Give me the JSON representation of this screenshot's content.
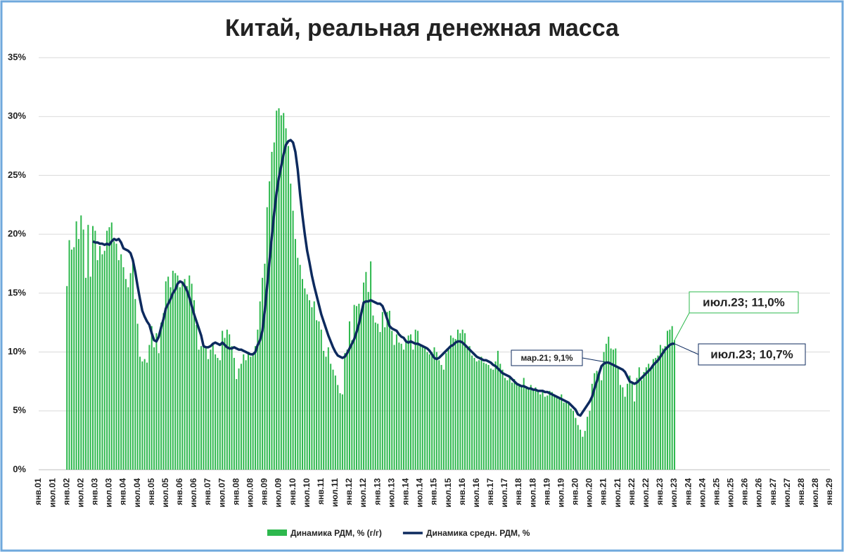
{
  "chart_data": {
    "type": "bar-line",
    "title": "Китай, реальная денежная масса",
    "categories": [
      "янв.01",
      null,
      null,
      null,
      null,
      null,
      "июл.01",
      null,
      null,
      null,
      null,
      null,
      "янв.02",
      null,
      null,
      null,
      null,
      null,
      "июл.02",
      null,
      null,
      null,
      null,
      null,
      "янв.03",
      null,
      null,
      null,
      null,
      null,
      "июл.03",
      null,
      null,
      null,
      null,
      null,
      "янв.04",
      null,
      null,
      null,
      null,
      null,
      "июл.04",
      null,
      null,
      null,
      null,
      null,
      "янв.05",
      null,
      null,
      null,
      null,
      null,
      "июл.05",
      null,
      null,
      null,
      null,
      null,
      "янв.06",
      null,
      null,
      null,
      null,
      null,
      "июл.06",
      null,
      null,
      null,
      null,
      null,
      "янв.07",
      null,
      null,
      null,
      null,
      null,
      "июл.07",
      null,
      null,
      null,
      null,
      null,
      "янв.08",
      null,
      null,
      null,
      null,
      null,
      "июл.08",
      null,
      null,
      null,
      null,
      null,
      "янв.09",
      null,
      null,
      null,
      null,
      null,
      "июл.09",
      null,
      null,
      null,
      null,
      null,
      "янв.10",
      null,
      null,
      null,
      null,
      null,
      "июл.10",
      null,
      null,
      null,
      null,
      null,
      "янв.11",
      null,
      null,
      null,
      null,
      null,
      "июл.11",
      null,
      null,
      null,
      null,
      null,
      "янв.12",
      null,
      null,
      null,
      null,
      null,
      "июл.12",
      null,
      null,
      null,
      null,
      null,
      "янв.13",
      null,
      null,
      null,
      null,
      null,
      "июл.13",
      null,
      null,
      null,
      null,
      null,
      "янв.14",
      null,
      null,
      null,
      null,
      null,
      "июл.14",
      null,
      null,
      null,
      null,
      null,
      "янв.15",
      null,
      null,
      null,
      null,
      null,
      "июл.15",
      null,
      null,
      null,
      null,
      null,
      "янв.16",
      null,
      null,
      null,
      null,
      null,
      "июл.16",
      null,
      null,
      null,
      null,
      null,
      "янв.17",
      null,
      null,
      null,
      null,
      null,
      "июл.17",
      null,
      null,
      null,
      null,
      null,
      "янв.18",
      null,
      null,
      null,
      null,
      null,
      "июл.18",
      null,
      null,
      null,
      null,
      null,
      "янв.19",
      null,
      null,
      null,
      null,
      null,
      "июл.19",
      null,
      null,
      null,
      null,
      null,
      "янв.20",
      null,
      null,
      null,
      null,
      null,
      "июл.20",
      null,
      null,
      null,
      null,
      null,
      "янв.21",
      null,
      null,
      null,
      null,
      null,
      "июл.21",
      null,
      null,
      null,
      null,
      null,
      "янв.22",
      null,
      null,
      null,
      null,
      null,
      "июл.22",
      null,
      null,
      null,
      null,
      null,
      "янв.23",
      null,
      null,
      null,
      null,
      null,
      "июл.23",
      null,
      null,
      null,
      null,
      null,
      "янв.24",
      null,
      null,
      null,
      null,
      null,
      "июл.24",
      null,
      null,
      null,
      null,
      null,
      "янв.25",
      null,
      null,
      null,
      null,
      null,
      "июл.25",
      null,
      null,
      null,
      null,
      null,
      "янв.26",
      null,
      null,
      null,
      null,
      null,
      "июл.26",
      null,
      null,
      null,
      null,
      null,
      "янв.27",
      null,
      null,
      null,
      null,
      null,
      "июл.27",
      null,
      null,
      null,
      null,
      null,
      "янв.28",
      null,
      null,
      null,
      null,
      null,
      "июл.28",
      null,
      null,
      null,
      null,
      null,
      "янв.29"
    ],
    "series": [
      {
        "name": "Динамика РДМ, % (г/г)",
        "type": "bar",
        "color": "#2db84d",
        "values": [
          null,
          null,
          null,
          null,
          null,
          null,
          null,
          null,
          null,
          null,
          null,
          null,
          15.6,
          19.5,
          18.7,
          18.9,
          21.1,
          19.6,
          21.6,
          20.4,
          16.3,
          20.8,
          16.4,
          20.7,
          20.3,
          17.8,
          19.0,
          18.3,
          18.6,
          20.3,
          20.6,
          21.0,
          19.4,
          19.2,
          17.8,
          18.3,
          17.2,
          16.2,
          15.5,
          16.7,
          17.6,
          14.5,
          12.4,
          9.6,
          9.2,
          9.4,
          9.1,
          10.6,
          12.2,
          10.4,
          11.6,
          9.9,
          12.5,
          13.3,
          16.0,
          16.4,
          15.5,
          16.9,
          16.7,
          16.5,
          15.5,
          16.0,
          16.2,
          15.6,
          16.5,
          15.8,
          14.4,
          12.3,
          10.2,
          10.5,
          10.7,
          10.3,
          9.4,
          10.2,
          10.7,
          9.8,
          9.5,
          9.3,
          11.8,
          11.2,
          11.9,
          11.5,
          10.5,
          9.5,
          7.7,
          8.6,
          9.0,
          9.8,
          9.3,
          10.0,
          9.6,
          9.9,
          10.5,
          11.9,
          14.3,
          16.3,
          17.5,
          22.3,
          24.5,
          27.0,
          27.8,
          30.5,
          30.7,
          30.1,
          30.3,
          29.0,
          27.5,
          24.3,
          22.0,
          19.6,
          18.0,
          17.4,
          16.2,
          15.4,
          14.9,
          14.4,
          13.8,
          14.3,
          12.7,
          12.6,
          11.9,
          10.1,
          9.6,
          10.4,
          9.0,
          8.5,
          8.0,
          7.2,
          6.5,
          6.4,
          9.9,
          10.2,
          12.6,
          11.0,
          14.0,
          13.9,
          14.1,
          13.6,
          15.9,
          16.8,
          15.1,
          17.7,
          13.1,
          12.5,
          12.4,
          11.7,
          13.4,
          12.1,
          13.4,
          13.5,
          11.8,
          10.6,
          11.5,
          10.8,
          10.7,
          10.2,
          10.9,
          11.4,
          11.5,
          10.2,
          11.9,
          11.8,
          10.7,
          10.6,
          10.4,
          10.0,
          9.8,
          10.0,
          10.4,
          10.0,
          9.3,
          8.9,
          8.5,
          9.9,
          10.3,
          11.4,
          11.2,
          11.1,
          11.9,
          11.6,
          11.9,
          11.6,
          10.3,
          10.5,
          9.7,
          9.5,
          9.2,
          9.3,
          9.6,
          9.1,
          9.0,
          8.9,
          8.6,
          8.5,
          9.2,
          10.1,
          9.0,
          8.5,
          7.8,
          7.6,
          7.9,
          7.4,
          7.7,
          7.4,
          7.2,
          7.1,
          7.8,
          7.1,
          6.9,
          7.2,
          6.9,
          7.0,
          6.6,
          6.4,
          6.6,
          6.2,
          6.3,
          6.7,
          6.6,
          6.4,
          6.2,
          6.0,
          6.4,
          5.7,
          5.7,
          5.6,
          5.2,
          5.0,
          4.4,
          3.8,
          3.4,
          2.8,
          3.3,
          4.5,
          5.0,
          7.3,
          8.2,
          8.4,
          8.3,
          7.6,
          10.0,
          10.7,
          11.3,
          10.3,
          10.2,
          10.3,
          8.6,
          7.2,
          7.0,
          6.2,
          7.3,
          8.0,
          7.4,
          5.8,
          7.8,
          8.7,
          7.6,
          8.3,
          8.7,
          9.0,
          8.5,
          9.4,
          9.5,
          9.7,
          10.6,
          10.3,
          10.5,
          11.8,
          11.9,
          12.2,
          11.0,
          null,
          null,
          null,
          null,
          null,
          null,
          null,
          null,
          null,
          null,
          null,
          null,
          null,
          null,
          null,
          null,
          null,
          null,
          null,
          null,
          null,
          null,
          null,
          null,
          null,
          null,
          null,
          null,
          null,
          null,
          null,
          null,
          null,
          null,
          null,
          null,
          null,
          null,
          null,
          null,
          null,
          null,
          null,
          null,
          null,
          null,
          null,
          null,
          null,
          null,
          null,
          null,
          null,
          null,
          null,
          null,
          null,
          null,
          null,
          null,
          null,
          null,
          null,
          null,
          null,
          null
        ]
      },
      {
        "name": "Динамика средн. РДМ, %",
        "type": "line",
        "color": "#0d2a5e",
        "values": [
          null,
          null,
          null,
          null,
          null,
          null,
          null,
          null,
          null,
          null,
          null,
          null,
          null,
          null,
          null,
          null,
          null,
          null,
          null,
          null,
          null,
          null,
          null,
          19.4,
          19.3,
          19.3,
          19.2,
          19.2,
          19.1,
          19.2,
          19.1,
          19.4,
          19.6,
          19.5,
          19.6,
          19.3,
          18.8,
          18.7,
          18.6,
          18.4,
          17.8,
          16.8,
          15.6,
          14.5,
          13.5,
          13.0,
          12.6,
          12.3,
          11.6,
          11.0,
          10.9,
          11.3,
          12.1,
          12.8,
          13.7,
          14.1,
          14.5,
          15.0,
          15.3,
          15.8,
          16.0,
          15.9,
          15.6,
          15.2,
          14.6,
          13.9,
          13.2,
          12.6,
          12.0,
          11.4,
          10.5,
          10.4,
          10.4,
          10.5,
          10.7,
          10.8,
          10.7,
          10.6,
          10.8,
          10.6,
          10.4,
          10.3,
          10.3,
          10.4,
          10.3,
          10.2,
          10.2,
          10.1,
          10.0,
          9.9,
          9.8,
          9.8,
          10.0,
          10.6,
          11.0,
          11.8,
          13.5,
          15.6,
          17.7,
          19.8,
          21.8,
          23.5,
          24.8,
          25.8,
          26.8,
          27.6,
          27.9,
          28.0,
          27.8,
          27.0,
          25.5,
          23.4,
          21.6,
          20.0,
          18.6,
          17.6,
          16.5,
          15.6,
          14.8,
          14.0,
          13.2,
          12.6,
          12.0,
          11.4,
          10.9,
          10.4,
          10.0,
          9.7,
          9.6,
          9.5,
          9.6,
          9.9,
          10.3,
          10.7,
          11.1,
          11.7,
          12.4,
          13.3,
          14.2,
          14.3,
          14.3,
          14.4,
          14.3,
          14.2,
          14.1,
          14.1,
          13.9,
          13.4,
          12.8,
          12.2,
          12.0,
          11.9,
          11.8,
          11.5,
          11.3,
          11.2,
          10.9,
          10.8,
          10.9,
          10.8,
          10.7,
          10.7,
          10.6,
          10.5,
          10.4,
          10.3,
          10.1,
          9.8,
          9.5,
          9.4,
          9.5,
          9.7,
          9.9,
          10.1,
          10.3,
          10.5,
          10.6,
          10.8,
          10.9,
          10.9,
          10.8,
          10.6,
          10.4,
          10.2,
          10.0,
          9.8,
          9.6,
          9.5,
          9.4,
          9.3,
          9.3,
          9.2,
          9.1,
          8.9,
          8.8,
          8.6,
          8.4,
          8.2,
          8.1,
          8.0,
          7.9,
          7.7,
          7.5,
          7.3,
          7.2,
          7.1,
          7.1,
          7.0,
          6.9,
          6.9,
          6.8,
          6.8,
          6.7,
          6.7,
          6.7,
          6.6,
          6.6,
          6.5,
          6.4,
          6.3,
          6.2,
          6.1,
          6.0,
          5.9,
          5.8,
          5.7,
          5.5,
          5.3,
          5.1,
          4.7,
          4.6,
          4.9,
          5.2,
          5.5,
          5.8,
          6.2,
          6.9,
          7.5,
          8.2,
          8.8,
          9.0,
          9.1,
          9.1,
          9.0,
          8.9,
          8.8,
          8.7,
          8.6,
          8.5,
          8.3,
          7.9,
          7.5,
          7.4,
          7.3,
          7.4,
          7.6,
          7.8,
          8.0,
          8.2,
          8.4,
          8.6,
          8.9,
          9.1,
          9.3,
          9.6,
          9.9,
          10.2,
          10.4,
          10.6,
          10.7,
          10.7,
          null,
          null,
          null,
          null,
          null,
          null,
          null,
          null,
          null,
          null,
          null,
          null,
          null,
          null,
          null,
          null,
          null,
          null,
          null,
          null,
          null,
          null,
          null,
          null,
          null,
          null,
          null,
          null,
          null,
          null,
          null,
          null,
          null,
          null,
          null,
          null,
          null,
          null,
          null,
          null,
          null,
          null,
          null,
          null,
          null,
          null,
          null,
          null,
          null,
          null,
          null,
          null,
          null,
          null,
          null,
          null,
          null,
          null,
          null,
          null,
          null,
          null,
          null,
          null,
          null,
          null
        ]
      }
    ],
    "ylim": [
      0,
      35
    ],
    "yticks": [
      {
        "value": 0,
        "label": "0%"
      },
      {
        "value": 5,
        "label": "5%"
      },
      {
        "value": 10,
        "label": "10%"
      },
      {
        "value": 15,
        "label": "15%"
      },
      {
        "value": 20,
        "label": "20%"
      },
      {
        "value": 25,
        "label": "25%"
      },
      {
        "value": 30,
        "label": "30%"
      },
      {
        "value": 35,
        "label": "35%"
      }
    ],
    "grid": true,
    "legend": "bottom",
    "annotations": [
      "июл.23; 11,0%",
      "июл.23; 10,7%",
      "мар.21; 9,1%"
    ]
  }
}
